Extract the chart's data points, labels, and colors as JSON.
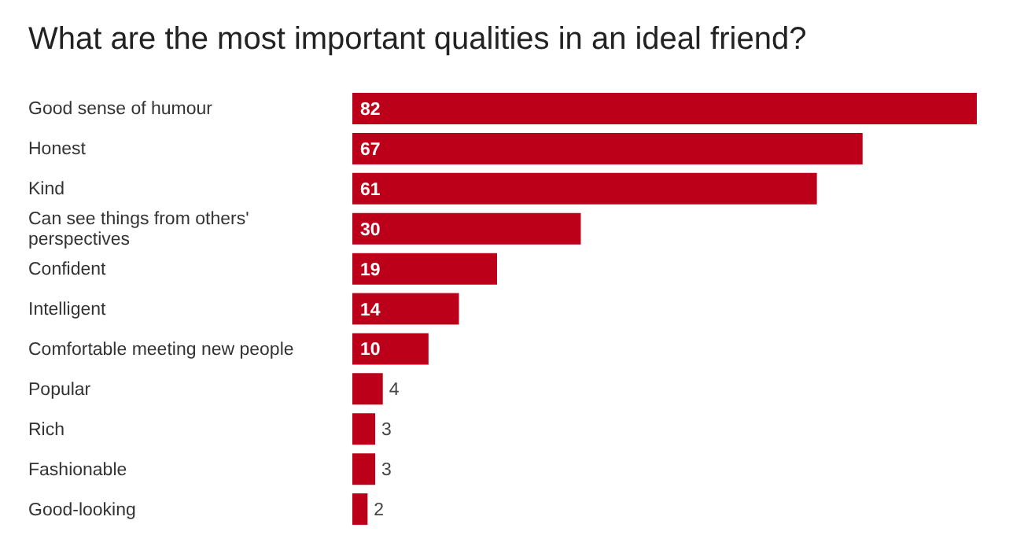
{
  "chart_data": {
    "type": "bar",
    "orientation": "horizontal",
    "title": "What are the most important qualities in an ideal friend?",
    "categories": [
      "Good sense of humour",
      "Honest",
      "Kind",
      "Can see things from others' perspectives",
      "Confident",
      "Intelligent",
      "Comfortable meeting new people",
      "Popular",
      "Rich",
      "Fashionable",
      "Good-looking"
    ],
    "values": [
      82,
      67,
      61,
      30,
      19,
      14,
      10,
      4,
      3,
      3,
      2
    ],
    "color": "#bd0019",
    "data_labels": true
  }
}
